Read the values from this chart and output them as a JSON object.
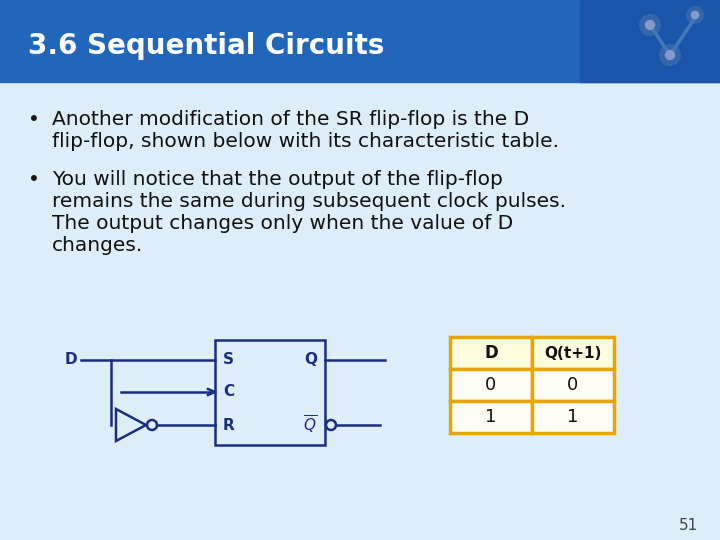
{
  "title": "3.6 Sequential Circuits",
  "title_color": "#ffffff",
  "title_bg_color": "#2266bb",
  "slide_bg_color": "#cce0f0",
  "body_bg_color": "#deeef8",
  "bullet1_line1": "Another modification of the SR flip-flop is the D",
  "bullet1_line2": "flip-flop, shown below with its characteristic table.",
  "bullet2_line1": "You will notice that the output of the flip-flop",
  "bullet2_line2": "remains the same during subsequent clock pulses.",
  "bullet2_line3": "The output changes only when the value of D",
  "bullet2_line4": "changes.",
  "circuit_color": "#1a2e80",
  "table_border_color": "#e6a800",
  "table_header_bg": "#fffde0",
  "table_body_bg": "#fffff5",
  "page_number": "51",
  "table_headers": [
    "D",
    "Q(t+1)"
  ],
  "table_rows": [
    [
      "0",
      "0"
    ],
    [
      "1",
      "1"
    ]
  ]
}
